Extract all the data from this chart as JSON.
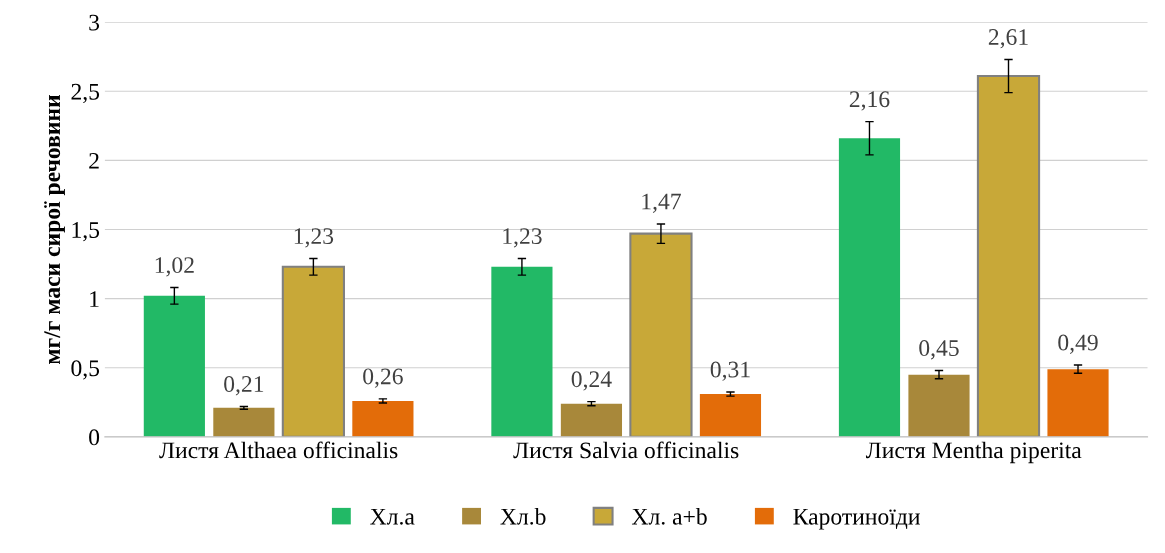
{
  "chart_data": {
    "type": "bar",
    "ylabel": "мг/г маси сирої речовини",
    "categories": [
      "Листя Althaea officinalis",
      "Листя Salvia officinalis",
      "Листя Mentha piperita"
    ],
    "series": [
      {
        "name": "Хл.a",
        "color": "#22b966",
        "values": [
          1.02,
          1.23,
          2.16
        ],
        "errors": [
          0.06,
          0.06,
          0.12
        ],
        "value_labels": [
          "1,02",
          "1,23",
          "2,16"
        ]
      },
      {
        "name": "Хл.b",
        "color": "#a8883a",
        "values": [
          0.21,
          0.24,
          0.45
        ],
        "errors": [
          0.01,
          0.015,
          0.03
        ],
        "value_labels": [
          "0,21",
          "0,24",
          "0,45"
        ]
      },
      {
        "name": "Хл. a+b",
        "color": "#c8a838",
        "values": [
          1.23,
          1.47,
          2.61
        ],
        "errors": [
          0.06,
          0.07,
          0.12
        ],
        "value_labels": [
          "1,23",
          "1,47",
          "2,61"
        ]
      },
      {
        "name": "Каротиноїди",
        "color": "#e36c09",
        "values": [
          0.26,
          0.31,
          0.49
        ],
        "errors": [
          0.015,
          0.015,
          0.03
        ],
        "value_labels": [
          "0,26",
          "0,31",
          "0,49"
        ]
      }
    ],
    "ylim": [
      0,
      3
    ],
    "yticks": [
      0,
      {
        "value": 0.5,
        "label": "0,5"
      },
      1,
      {
        "value": 1.5,
        "label": "1,5"
      },
      2,
      {
        "value": 2.5,
        "label": "2,5"
      },
      3
    ],
    "grid": "y",
    "legend": "bottom"
  }
}
